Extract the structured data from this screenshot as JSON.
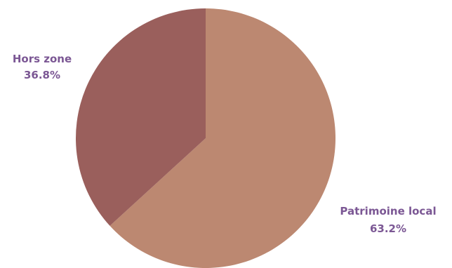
{
  "chart_data": {
    "type": "pie",
    "title": "",
    "slices": [
      {
        "name": "Patrimoine local",
        "value": 63.2,
        "label": "63.2%",
        "color": "#bc8871"
      },
      {
        "name": "Hors zone",
        "value": 36.8,
        "label": "36.8%",
        "color": "#9a5f5c"
      }
    ],
    "start_angle_deg": 0,
    "direction": "clockwise",
    "label_color": "#7b5794",
    "legend": "none"
  }
}
